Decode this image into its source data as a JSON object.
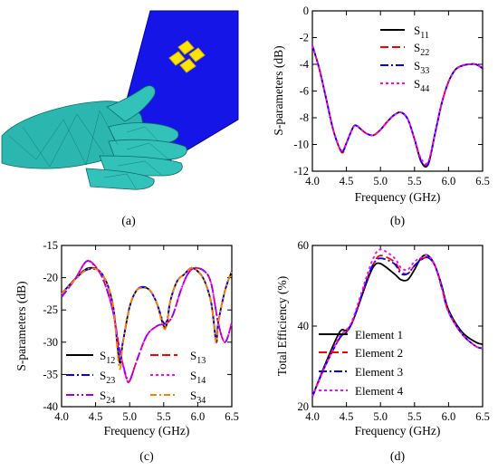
{
  "captions": {
    "a": "(a)",
    "b": "(b)",
    "c": "(c)",
    "d": "(d)"
  },
  "chart_data": [
    {
      "id": "b",
      "type": "line",
      "xlabel": "Frequency (GHz)",
      "ylabel": "S-parameters (dB)",
      "xlim": [
        4.0,
        6.5
      ],
      "ylim": [
        -12,
        0
      ],
      "xticks": [
        "4.0",
        "4.5",
        "5.0",
        "5.5",
        "6.0",
        "6.5"
      ],
      "yticks": [
        "0",
        "-2",
        "-4",
        "-6",
        "-8",
        "-10",
        "-12"
      ],
      "legend_position": "top-right",
      "series": [
        {
          "name": "S",
          "sub": "11",
          "color": "#000000",
          "dash": "solid",
          "x": [
            4.0,
            4.1,
            4.2,
            4.3,
            4.4,
            4.45,
            4.5,
            4.6,
            4.65,
            4.7,
            4.8,
            4.9,
            5.0,
            5.1,
            5.2,
            5.3,
            5.4,
            5.5,
            5.6,
            5.7,
            5.8,
            5.9,
            6.0,
            6.1,
            6.2,
            6.3,
            6.4,
            6.5
          ],
          "y": [
            -2.6,
            -4.3,
            -6.5,
            -8.8,
            -10.3,
            -10.5,
            -9.9,
            -8.7,
            -8.6,
            -8.8,
            -9.2,
            -9.3,
            -8.9,
            -8.3,
            -7.8,
            -7.6,
            -8.1,
            -9.6,
            -11.3,
            -11.5,
            -9.2,
            -6.9,
            -5.3,
            -4.4,
            -4.1,
            -4.0,
            -4.0,
            -4.3
          ]
        },
        {
          "name": "S",
          "sub": "22",
          "color": "#ff0000",
          "dash": "9,4",
          "x": [
            4.0,
            4.1,
            4.2,
            4.3,
            4.4,
            4.45,
            4.5,
            4.6,
            4.65,
            4.7,
            4.8,
            4.9,
            5.0,
            5.1,
            5.2,
            5.3,
            5.4,
            5.5,
            5.6,
            5.7,
            5.8,
            5.9,
            6.0,
            6.1,
            6.2,
            6.3,
            6.4,
            6.5
          ],
          "y": [
            -2.6,
            -4.3,
            -6.5,
            -8.8,
            -10.3,
            -10.6,
            -9.9,
            -8.7,
            -8.6,
            -8.8,
            -9.2,
            -9.3,
            -8.9,
            -8.3,
            -7.8,
            -7.6,
            -8.1,
            -9.6,
            -11.2,
            -11.4,
            -9.2,
            -6.9,
            -5.3,
            -4.4,
            -4.1,
            -4.0,
            -4.0,
            -4.3
          ]
        },
        {
          "name": "S",
          "sub": "33",
          "color": "#0000ff",
          "dash": "9,3,2,3",
          "x": [
            4.0,
            4.1,
            4.2,
            4.3,
            4.4,
            4.45,
            4.5,
            4.6,
            4.65,
            4.7,
            4.8,
            4.9,
            5.0,
            5.1,
            5.2,
            5.3,
            5.4,
            5.5,
            5.6,
            5.7,
            5.8,
            5.9,
            6.0,
            6.1,
            6.2,
            6.3,
            6.4,
            6.5
          ],
          "y": [
            -2.6,
            -4.3,
            -6.5,
            -8.8,
            -10.3,
            -10.5,
            -9.9,
            -8.7,
            -8.6,
            -8.8,
            -9.2,
            -9.3,
            -8.9,
            -8.3,
            -7.8,
            -7.6,
            -8.1,
            -9.6,
            -11.3,
            -11.5,
            -9.2,
            -6.9,
            -5.3,
            -4.4,
            -4.1,
            -4.0,
            -4.0,
            -4.3
          ]
        },
        {
          "name": "S",
          "sub": "44",
          "color": "#ff00ff",
          "dash": "3,3",
          "x": [
            4.0,
            4.1,
            4.2,
            4.3,
            4.4,
            4.45,
            4.5,
            4.6,
            4.65,
            4.7,
            4.8,
            4.9,
            5.0,
            5.1,
            5.2,
            5.3,
            5.4,
            5.5,
            5.6,
            5.7,
            5.8,
            5.9,
            6.0,
            6.1,
            6.2,
            6.3,
            6.4,
            6.5
          ],
          "y": [
            -2.6,
            -4.3,
            -6.5,
            -8.8,
            -10.3,
            -10.4,
            -9.9,
            -8.7,
            -8.6,
            -8.8,
            -9.2,
            -9.3,
            -8.9,
            -8.3,
            -7.8,
            -7.6,
            -8.1,
            -9.6,
            -11.1,
            -11.3,
            -9.2,
            -6.9,
            -5.3,
            -4.4,
            -4.1,
            -4.0,
            -4.0,
            -4.3
          ]
        }
      ]
    },
    {
      "id": "c",
      "type": "line",
      "xlabel": "Frequency (GHz)",
      "ylabel": "S-parameters (dB)",
      "xlim": [
        4.0,
        6.5
      ],
      "ylim": [
        -40,
        -15
      ],
      "xticks": [
        "4.0",
        "4.5",
        "5.0",
        "5.5",
        "6.0",
        "6.5"
      ],
      "yticks": [
        "-15",
        "-20",
        "-25",
        "-30",
        "-35",
        "-40"
      ],
      "legend_position": "bottom",
      "series": [
        {
          "name": "S",
          "sub": "12",
          "color": "#000000",
          "dash": "solid",
          "x": [
            4.0,
            4.2,
            4.4,
            4.6,
            4.75,
            4.85,
            4.9,
            5.0,
            5.1,
            5.2,
            5.3,
            5.4,
            5.5,
            5.55,
            5.6,
            5.7,
            5.8,
            5.9,
            6.0,
            6.1,
            6.2,
            6.27,
            6.3,
            6.4,
            6.5
          ],
          "y": [
            -22.5,
            -20.2,
            -18.5,
            -19.5,
            -24,
            -33,
            -30,
            -24.5,
            -22,
            -21.5,
            -22,
            -24,
            -27.5,
            -27,
            -23.5,
            -20.5,
            -19.5,
            -18.5,
            -19,
            -20.5,
            -24,
            -30,
            -27,
            -22,
            -19
          ]
        },
        {
          "name": "S",
          "sub": "13",
          "color": "#ff0000",
          "dash": "9,4",
          "x": [
            4.0,
            4.2,
            4.35,
            4.45,
            4.6,
            4.75,
            4.85,
            4.95,
            5.0,
            5.1,
            5.25,
            5.4,
            5.6,
            5.75,
            5.85,
            5.95,
            6.1,
            6.2,
            6.3,
            6.4,
            6.5
          ],
          "y": [
            -23,
            -20.2,
            -17.6,
            -17.7,
            -20,
            -25,
            -31,
            -35.5,
            -36,
            -33,
            -29,
            -27.5,
            -26.5,
            -22,
            -19.5,
            -18.5,
            -19,
            -21,
            -27,
            -30,
            -27
          ]
        },
        {
          "name": "S",
          "sub": "23",
          "color": "#0000ff",
          "dash": "9,3,2,3",
          "x": [
            4.0,
            4.2,
            4.4,
            4.6,
            4.75,
            4.85,
            4.9,
            5.0,
            5.1,
            5.2,
            5.3,
            5.4,
            5.5,
            5.55,
            5.6,
            5.7,
            5.8,
            5.9,
            6.0,
            6.1,
            6.2,
            6.27,
            6.3,
            6.4,
            6.5
          ],
          "y": [
            -22.5,
            -20.2,
            -18.7,
            -19.5,
            -24,
            -32.5,
            -30,
            -24.5,
            -22,
            -21.4,
            -22,
            -24,
            -27,
            -26.5,
            -23.5,
            -20.5,
            -19.5,
            -18.5,
            -19,
            -20.5,
            -24,
            -29.5,
            -27,
            -22,
            -19
          ]
        },
        {
          "name": "S",
          "sub": "14",
          "color": "#ff00ff",
          "dash": "3,3",
          "x": [
            4.0,
            4.2,
            4.35,
            4.45,
            4.6,
            4.75,
            4.85,
            4.95,
            5.0,
            5.1,
            5.25,
            5.4,
            5.6,
            5.75,
            5.85,
            5.95,
            6.1,
            6.2,
            6.3,
            6.4,
            6.5
          ],
          "y": [
            -23,
            -20.2,
            -17.6,
            -17.7,
            -20,
            -25,
            -31,
            -35.5,
            -36,
            -33,
            -29,
            -27.5,
            -26.5,
            -22,
            -19.5,
            -18.5,
            -19,
            -21,
            -27,
            -30,
            -27
          ]
        },
        {
          "name": "S",
          "sub": "24",
          "color": "#9900ff",
          "dash": "9,3,2,3,2,3",
          "x": [
            4.0,
            4.2,
            4.35,
            4.45,
            4.6,
            4.75,
            4.85,
            4.95,
            5.0,
            5.1,
            5.25,
            5.4,
            5.6,
            5.75,
            5.85,
            5.95,
            6.1,
            6.2,
            6.3,
            6.4,
            6.5
          ],
          "y": [
            -23,
            -20.2,
            -17.6,
            -17.8,
            -20,
            -25,
            -31,
            -35.3,
            -36,
            -33,
            -29,
            -27.5,
            -26.5,
            -22,
            -19.5,
            -18.5,
            -19,
            -21,
            -27,
            -30,
            -27
          ]
        },
        {
          "name": "S",
          "sub": "34",
          "color": "#ff8000",
          "dash": "7,3,2,3",
          "x": [
            4.0,
            4.2,
            4.4,
            4.6,
            4.75,
            4.85,
            4.9,
            5.0,
            5.1,
            5.2,
            5.3,
            5.4,
            5.5,
            5.55,
            5.6,
            5.7,
            5.8,
            5.9,
            6.0,
            6.1,
            6.2,
            6.27,
            6.3,
            6.4,
            6.5
          ],
          "y": [
            -22.5,
            -20.3,
            -18.6,
            -19.5,
            -24,
            -34,
            -30,
            -24.5,
            -22,
            -21.6,
            -22,
            -24,
            -27.8,
            -27,
            -23.5,
            -20.5,
            -19.5,
            -18.5,
            -19,
            -20.5,
            -24,
            -30,
            -27,
            -22,
            -19
          ]
        }
      ]
    },
    {
      "id": "d",
      "type": "line",
      "xlabel": "Frequency (GHz)",
      "ylabel": "Total Efficiency (%)",
      "xlim": [
        4.0,
        6.5
      ],
      "ylim": [
        20,
        60
      ],
      "xticks": [
        "4.0",
        "4.5",
        "5.0",
        "5.5",
        "6.0",
        "6.5"
      ],
      "yticks": [
        "60",
        "40",
        "20"
      ],
      "legend_position": "bottom-left",
      "series": [
        {
          "name": "Element 1",
          "color": "#000000",
          "dash": "solid",
          "x": [
            4.0,
            4.2,
            4.4,
            4.5,
            4.6,
            4.8,
            4.9,
            5.0,
            5.2,
            5.3,
            5.4,
            5.5,
            5.6,
            5.7,
            5.8,
            5.9,
            6.0,
            6.2,
            6.4,
            6.5
          ],
          "y": [
            22.5,
            31,
            38.5,
            39,
            41.5,
            51,
            54.8,
            55.5,
            53,
            51.5,
            51.5,
            54,
            57,
            57.5,
            55,
            50,
            44,
            38.5,
            36,
            35.5
          ]
        },
        {
          "name": "Element 2",
          "color": "#ff0000",
          "dash": "9,4",
          "x": [
            4.0,
            4.2,
            4.4,
            4.5,
            4.6,
            4.8,
            4.9,
            5.0,
            5.2,
            5.3,
            5.4,
            5.5,
            5.6,
            5.7,
            5.8,
            5.9,
            6.0,
            6.2,
            6.4,
            6.5
          ],
          "y": [
            22.5,
            30.5,
            37,
            38.5,
            41.5,
            51.5,
            55.5,
            57.5,
            56,
            53.5,
            53,
            55,
            56.5,
            57,
            55,
            49.5,
            43.5,
            38,
            35,
            34.5
          ]
        },
        {
          "name": "Element 3",
          "color": "#0000ff",
          "dash": "9,3,2,3",
          "x": [
            4.0,
            4.2,
            4.4,
            4.5,
            4.6,
            4.8,
            4.9,
            5.0,
            5.2,
            5.3,
            5.4,
            5.5,
            5.6,
            5.7,
            5.8,
            5.9,
            6.0,
            6.2,
            6.4,
            6.5
          ],
          "y": [
            22.5,
            30.5,
            37,
            38.5,
            41.5,
            51.5,
            55.5,
            56.8,
            55.5,
            53,
            53,
            55,
            56.5,
            57,
            55,
            49.5,
            43.5,
            38,
            35,
            34.5
          ]
        },
        {
          "name": "Element 4",
          "color": "#ff00ff",
          "dash": "3,3",
          "x": [
            4.0,
            4.2,
            4.4,
            4.5,
            4.6,
            4.8,
            4.9,
            5.0,
            5.2,
            5.3,
            5.4,
            5.5,
            5.6,
            5.7,
            5.8,
            5.9,
            6.0,
            6.2,
            6.4,
            6.5
          ],
          "y": [
            22.5,
            30.5,
            37.5,
            39,
            42,
            52.5,
            57,
            59,
            57,
            54.5,
            54,
            56,
            57,
            57.5,
            55,
            49.5,
            43.5,
            38,
            35,
            34.5
          ]
        }
      ]
    }
  ]
}
